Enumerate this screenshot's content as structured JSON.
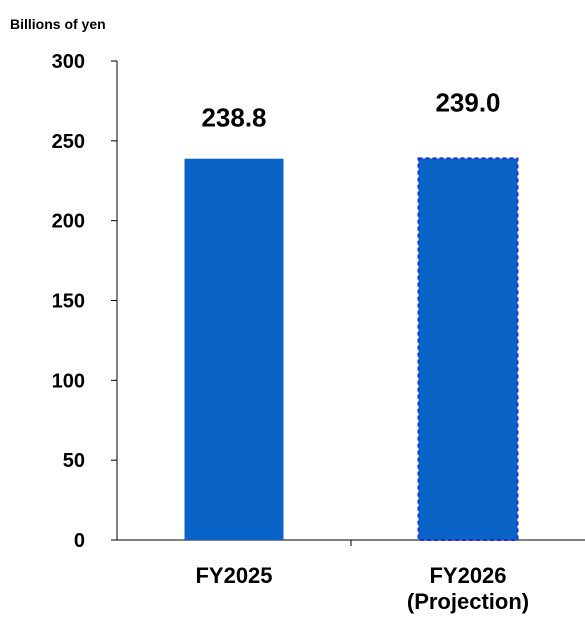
{
  "chart_data": {
    "type": "bar",
    "ylabel": "Billions of yen",
    "categories": [
      "FY2025",
      "FY2026\n(Projection)"
    ],
    "values": [
      238.8,
      239.0
    ],
    "value_labels": [
      "238.8",
      "239.0"
    ],
    "bar_styles": [
      "solid",
      "dashed"
    ],
    "ylim": [
      0,
      300
    ],
    "yticks": [
      0,
      50,
      100,
      150,
      200,
      250,
      300
    ],
    "grid": false,
    "legend": "none",
    "colors": {
      "bar_fill": "#0a64c8",
      "dashed_border": "#1f2fd6",
      "axis": "#000000"
    }
  }
}
